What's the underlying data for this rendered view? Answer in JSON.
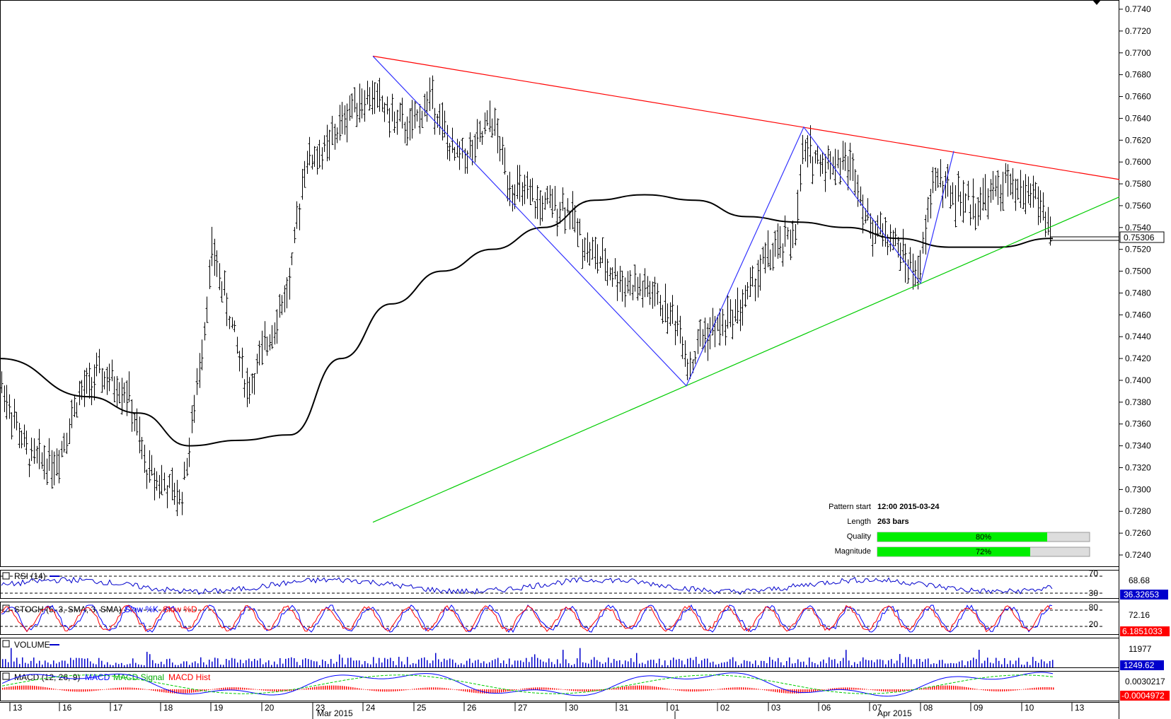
{
  "chart_data": {
    "type": "bar",
    "subtype": "ohlc",
    "series": [
      {
        "name": "",
        "x": [
          "2015-03-13",
          "2015-03-16",
          "2015-03-17",
          "2015-03-18",
          "2015-03-19",
          "2015-03-20",
          "2015-03-23",
          "2015-03-24",
          "2015-03-25",
          "2015-03-26",
          "2015-03-27",
          "2015-03-30",
          "2015-03-31",
          "2015-04-01",
          "2015-04-02",
          "2015-04-03",
          "2015-04-06",
          "2015-04-07",
          "2015-04-08",
          "2015-04-09",
          "2015-04-10"
        ],
        "values": [
          0.739,
          0.735,
          0.7395,
          0.731,
          0.748,
          0.739,
          0.76,
          0.7655,
          0.7635,
          0.7585,
          0.756,
          0.7505,
          0.748,
          0.743,
          0.749,
          0.76,
          0.76,
          0.7505,
          0.757,
          0.7565,
          0.7575
        ]
      }
    ],
    "moving_average": {
      "name": "",
      "values": [
        0.742,
        0.7385,
        0.737,
        0.734,
        0.7345,
        0.735,
        0.742,
        0.747,
        0.75,
        0.752,
        0.754,
        0.7565,
        0.757,
        0.7565,
        0.755,
        0.7545,
        0.754,
        0.753,
        0.7522,
        0.7522,
        0.753
      ]
    },
    "trendlines": [
      {
        "name": "resistance",
        "color": "#ff0000",
        "from": [
          "2015-03-24",
          0.7697
        ],
        "to": [
          "2015-04-10",
          0.7584
        ]
      },
      {
        "name": "support",
        "color": "#00cc00",
        "from": [
          "2015-03-24",
          0.727
        ],
        "to": [
          "2015-04-10",
          0.7568
        ]
      }
    ],
    "zigzag": {
      "color": "#3333ff",
      "points": [
        [
          "2015-03-24",
          0.7697
        ],
        [
          "2015-04-01",
          0.7395
        ],
        [
          "2015-04-03",
          0.7632
        ],
        [
          "2015-04-07",
          0.7489
        ],
        [
          "2015-04-08",
          0.761
        ]
      ]
    },
    "ylim": [
      0.722,
      0.775
    ],
    "y_ticks": [
      "0.7740",
      "0.7720",
      "0.7700",
      "0.7680",
      "0.7660",
      "0.7640",
      "0.7620",
      "0.7600",
      "0.7580",
      "0.7560",
      "0.7540",
      "0.7520",
      "0.7500",
      "0.7480",
      "0.7460",
      "0.7440",
      "0.7420",
      "0.7400",
      "0.7380",
      "0.7360",
      "0.7340",
      "0.7320",
      "0.7300",
      "0.7280",
      "0.7260",
      "0.7240"
    ],
    "x_ticks": [
      "13",
      "16",
      "17",
      "18",
      "19",
      "20",
      "23",
      "24",
      "25",
      "26",
      "27",
      "30",
      "31",
      "01",
      "02",
      "03",
      "06",
      "07",
      "08",
      "09",
      "10",
      "13"
    ],
    "x_month_labels": [
      "Mar 2015",
      "Apr 2015"
    ],
    "current_price": "0.75306",
    "grid": false,
    "title": "",
    "xlabel": "",
    "ylabel": ""
  },
  "pattern_info": {
    "start_label": "Pattern start",
    "start_value": "12:00 2015-03-24",
    "length_label": "Length",
    "length_value": "263 bars",
    "quality_label": "Quality",
    "quality_pct": 80,
    "quality_text": "80%",
    "magnitude_label": "Magnitude",
    "magnitude_pct": 72,
    "magnitude_text": "72%"
  },
  "indicators": {
    "rsi": {
      "label": "RSI (14)",
      "upper": "70",
      "lower": "30",
      "right_top": "68.68",
      "value": "36.32653"
    },
    "stoch": {
      "label": "STOCH (5, 3, SMA, 3, SMA)",
      "k_label": "Slow %K",
      "d_label": "Slow %D",
      "upper": "80",
      "lower": "20",
      "right_top": "72.16",
      "value": "6.1851033"
    },
    "volume": {
      "label": "VOLUME",
      "right_top": "11977",
      "value": "1249.62"
    },
    "macd": {
      "label": "MACD (12, 26, 9)",
      "l1": "MACD",
      "l2": "MACD Signal",
      "l3": "MACD Hist",
      "right_top": "0.0030217",
      "value": "-0.0004972"
    }
  },
  "colors": {
    "price": "#000000",
    "rsi": "#0000cc",
    "stoch_k": "#0000ff",
    "stoch_d": "#ff0000",
    "volume": "#0000cc",
    "macd": "#0000ff",
    "macd_signal": "#00cc00",
    "macd_hist": "#ff0000",
    "value_box_blue": "#0000cc",
    "value_box_red": "#ff0000",
    "bar_fill": "#00ee00"
  }
}
